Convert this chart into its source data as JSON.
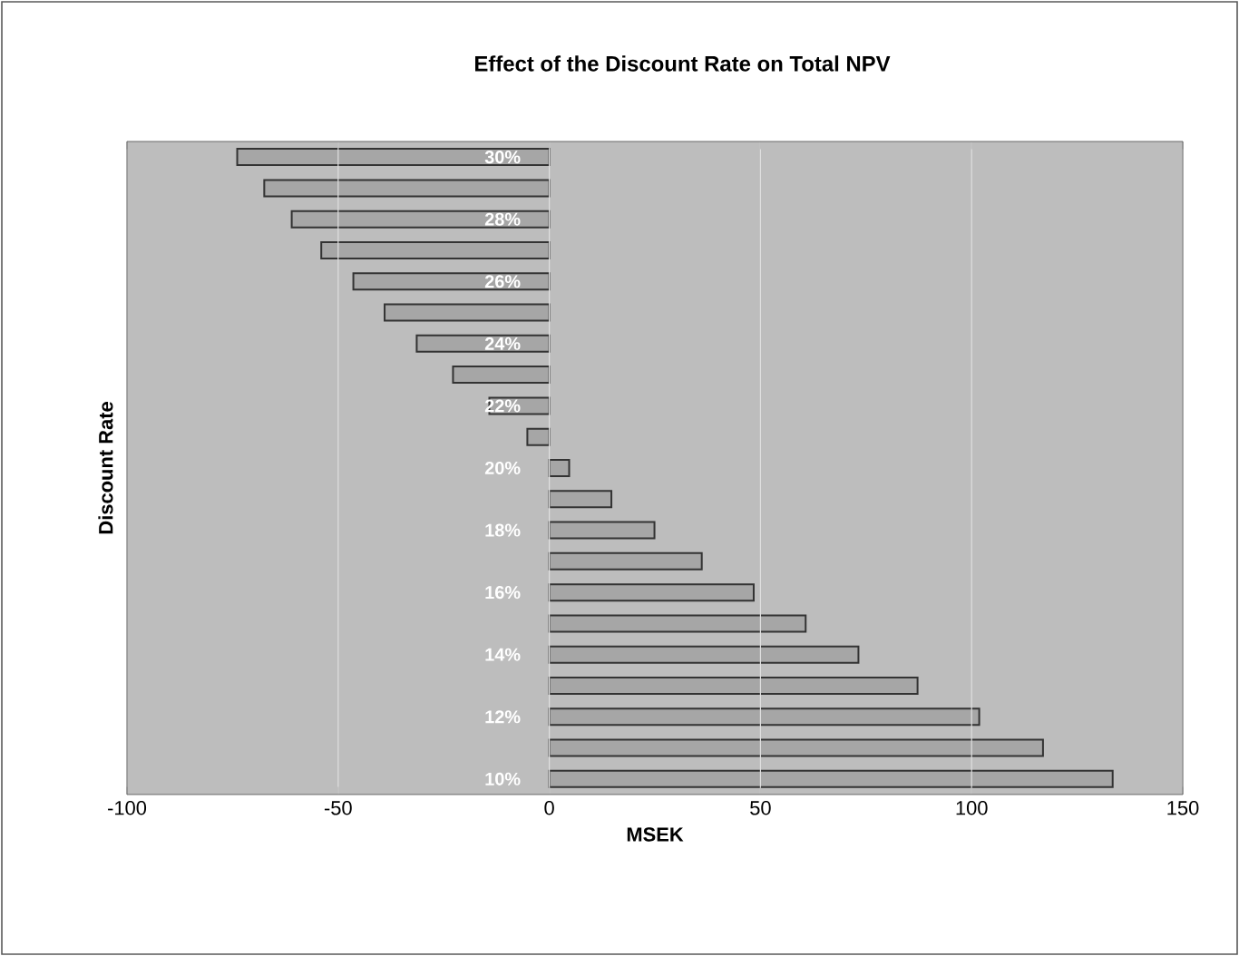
{
  "chart_data": {
    "type": "bar",
    "orientation": "horizontal",
    "title": "Effect of the Discount Rate on Total NPV",
    "xlabel": "MSEK",
    "ylabel": "Discount Rate",
    "categories": [
      "30%",
      null,
      "28%",
      null,
      "26%",
      null,
      "24%",
      null,
      "22%",
      null,
      "20%",
      null,
      "18%",
      null,
      "16%",
      null,
      "14%",
      null,
      "12%",
      null,
      "10%"
    ],
    "values": [
      -73.9,
      -67.5,
      -61,
      -54,
      -46.4,
      -39,
      -31.4,
      -22.8,
      -14.2,
      -5.2,
      4.7,
      14.7,
      24.9,
      36.1,
      48.4,
      60.7,
      73.2,
      87.2,
      101.8,
      116.9,
      133.4
    ],
    "color": "#a6a6a6",
    "xlim": [
      -100,
      150
    ],
    "xticks": [
      -100,
      -50,
      0,
      50,
      100,
      150
    ],
    "grid": "x"
  }
}
